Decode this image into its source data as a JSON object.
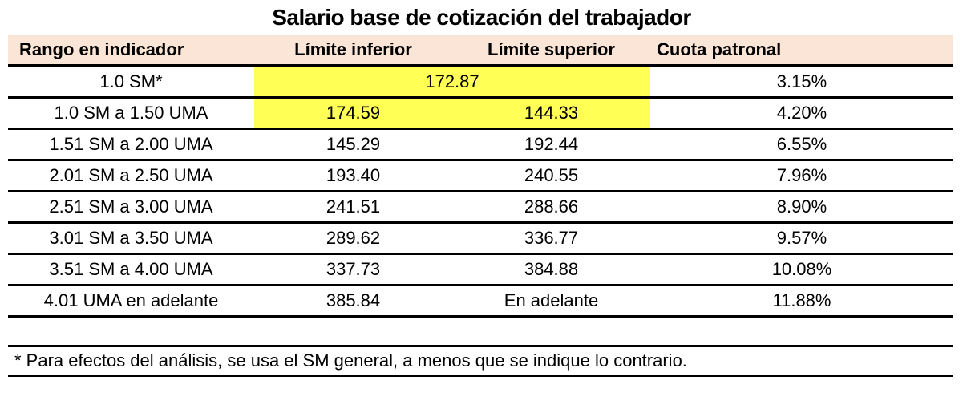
{
  "title": "Salario base de cotización del trabajador",
  "colors": {
    "header_bg": "#fbe5d6",
    "highlight": "#ffff55",
    "border": "#000000",
    "text": "#000000"
  },
  "table": {
    "headers": [
      "Rango en indicador",
      "Límite inferior",
      "Límite superior",
      "Cuota patronal"
    ],
    "rows": [
      {
        "rango": "1.0 SM*",
        "limites_merged": "172.87",
        "cuota": "3.15%"
      },
      {
        "rango": "1.0 SM a 1.50 UMA",
        "inferior": "174.59",
        "superior": "144.33",
        "cuota": "4.20%"
      },
      {
        "rango": "1.51 SM a 2.00 UMA",
        "inferior": "145.29",
        "superior": "192.44",
        "cuota": "6.55%"
      },
      {
        "rango": "2.01 SM a 2.50 UMA",
        "inferior": "193.40",
        "superior": "240.55",
        "cuota": "7.96%"
      },
      {
        "rango": "2.51 SM a 3.00 UMA",
        "inferior": "241.51",
        "superior": "288.66",
        "cuota": "8.90%"
      },
      {
        "rango": "3.01 SM a 3.50 UMA",
        "inferior": "289.62",
        "superior": "336.77",
        "cuota": "9.57%"
      },
      {
        "rango": "3.51 SM a 4.00 UMA",
        "inferior": "337.73",
        "superior": "384.88",
        "cuota": "10.08%"
      },
      {
        "rango": "4.01 UMA en adelante",
        "inferior": "385.84",
        "superior": "En adelante",
        "cuota": "11.88%"
      }
    ]
  },
  "footnote": "* Para efectos del análisis, se usa el SM general, a menos que se indique lo contrario.",
  "chart_data": {
    "type": "table",
    "title": "Salario base de cotización del trabajador",
    "columns": [
      "Rango en indicador",
      "Límite inferior",
      "Límite superior",
      "Cuota patronal"
    ],
    "rows": [
      [
        "1.0 SM*",
        "172.87",
        "",
        "3.15%"
      ],
      [
        "1.0 SM a 1.50 UMA",
        "174.59",
        "144.33",
        "4.20%"
      ],
      [
        "1.51 SM a 2.00 UMA",
        "145.29",
        "192.44",
        "6.55%"
      ],
      [
        "2.01 SM a 2.50 UMA",
        "193.40",
        "240.55",
        "7.96%"
      ],
      [
        "2.51 SM a 3.00 UMA",
        "241.51",
        "288.66",
        "8.90%"
      ],
      [
        "3.01 SM a 3.50 UMA",
        "289.62",
        "336.77",
        "9.57%"
      ],
      [
        "3.51 SM a 4.00 UMA",
        "337.73",
        "384.88",
        "10.08%"
      ],
      [
        "4.01 UMA en adelante",
        "385.84",
        "En adelante",
        "11.88%"
      ]
    ],
    "merged_cells": [
      {
        "row": 0,
        "cols": [
          1,
          2
        ],
        "value": "172.87"
      }
    ],
    "highlighted_cells": [
      {
        "row": 0,
        "cols": [
          1,
          2
        ]
      },
      {
        "row": 1,
        "cols": [
          1,
          2
        ]
      }
    ],
    "highlight_color": "#ffff55",
    "header_background": "#fbe5d6",
    "footnote": "* Para efectos del análisis, se usa el SM general, a menos que se indique lo contrario."
  }
}
